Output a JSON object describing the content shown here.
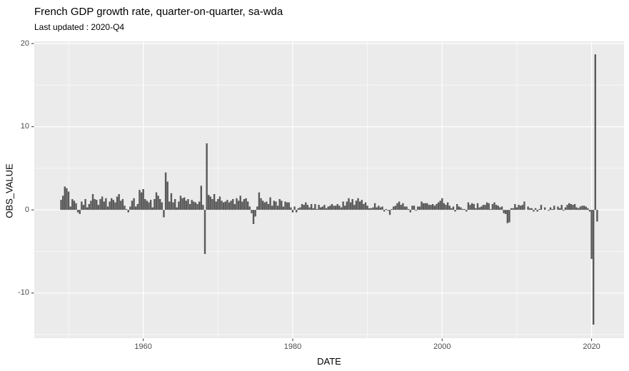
{
  "title": "French GDP growth rate, quarter-on-quarter, sa-wda",
  "subtitle": "Last updated : 2020-Q4",
  "chart_data": {
    "type": "bar",
    "title": "French GDP growth rate, quarter-on-quarter, sa-wda",
    "subtitle": "Last updated : 2020-Q4",
    "xlabel": "DATE",
    "ylabel": "OBS_VALUE",
    "legend": "none",
    "grid": "major-and-minor-white-on-gray",
    "x_ticks": [
      1960,
      1980,
      2000,
      2020
    ],
    "x_minor_ticks": [
      1950,
      1970,
      1990,
      2010
    ],
    "y_ticks": [
      20,
      10,
      0,
      -10
    ],
    "y_minor_ticks": [
      15,
      5,
      -5,
      -15
    ],
    "xlim": [
      1945.41,
      2024.34
    ],
    "ylim": [
      -15.43,
      20.26
    ],
    "frequency": "quarterly",
    "start_year": 1949,
    "start_quarter": 1,
    "colors": {
      "bar": "#595959",
      "panel_bg": "#EBEBEB",
      "gridline": "#FFFFFF",
      "tick_label": "#4D4D4D",
      "axis_tick": "#333333",
      "title_text": "#000000"
    },
    "values": [
      1.2,
      1.7,
      2.8,
      2.6,
      2.2,
      0.4,
      1.3,
      1.1,
      0.8,
      -0.3,
      -0.5,
      1.0,
      0.6,
      1.3,
      0.3,
      0.7,
      1.1,
      1.9,
      1.3,
      1.2,
      0.6,
      1.3,
      1.6,
      1.0,
      1.4,
      0.4,
      1.0,
      1.4,
      1.2,
      0.9,
      1.6,
      1.9,
      1.1,
      1.3,
      0.5,
      0.1,
      -0.3,
      0.4,
      1.1,
      1.4,
      0.4,
      0.7,
      2.4,
      2.1,
      2.5,
      1.3,
      1.1,
      0.9,
      1.2,
      0.3,
      1.3,
      2.1,
      1.7,
      1.3,
      0.9,
      -0.9,
      4.5,
      3.4,
      1.0,
      2.0,
      0.9,
      1.3,
      0.3,
      1.0,
      1.7,
      1.4,
      1.5,
      1.1,
      1.3,
      0.7,
      1.2,
      1.0,
      0.9,
      0.7,
      1.0,
      2.9,
      0.6,
      -5.3,
      8.0,
      1.8,
      1.6,
      1.3,
      1.9,
      1.0,
      1.3,
      1.6,
      1.1,
      0.9,
      1.0,
      1.2,
      0.9,
      1.1,
      1.3,
      0.7,
      1.4,
      1.1,
      1.7,
      1.0,
      1.3,
      1.4,
      1.0,
      0.4,
      -0.4,
      -1.7,
      -0.8,
      0.4,
      2.1,
      1.4,
      1.1,
      0.9,
      1.0,
      0.7,
      1.5,
      0.5,
      1.1,
      1.0,
      0.5,
      1.3,
      1.1,
      0.4,
      1.0,
      0.9,
      0.9,
      0.3,
      -0.3,
      0.4,
      -0.3,
      0.2,
      0.3,
      0.7,
      0.6,
      0.9,
      0.6,
      0.3,
      0.7,
      0.2,
      0.7,
      0.1,
      0.6,
      0.3,
      0.4,
      0.6,
      0.2,
      0.4,
      0.5,
      0.7,
      0.5,
      0.5,
      0.7,
      0.5,
      0.3,
      1.0,
      0.5,
      1.0,
      1.4,
      0.9,
      1.3,
      0.6,
      1.1,
      1.4,
      1.0,
      1.2,
      0.7,
      0.9,
      0.5,
      0.2,
      0.2,
      0.3,
      0.8,
      0.3,
      0.5,
      0.3,
      0.4,
      -0.2,
      0.1,
      -0.1,
      -0.6,
      0.1,
      0.4,
      0.5,
      0.8,
      1.0,
      0.6,
      0.8,
      0.4,
      0.4,
      0.1,
      -0.3,
      0.5,
      0.5,
      -0.1,
      0.4,
      0.4,
      1.0,
      0.8,
      0.8,
      0.8,
      0.6,
      0.6,
      0.7,
      0.5,
      0.7,
      0.9,
      1.1,
      1.4,
      0.8,
      0.6,
      0.9,
      0.5,
      0.2,
      0.4,
      -0.2,
      0.7,
      0.4,
      0.3,
      0.1,
      0.1,
      -0.2,
      0.9,
      0.6,
      0.8,
      0.7,
      0.2,
      0.8,
      0.3,
      0.4,
      0.6,
      0.6,
      0.9,
      0.8,
      0.1,
      0.7,
      0.9,
      0.6,
      0.5,
      0.3,
      0.4,
      -0.4,
      -0.5,
      -1.6,
      -1.5,
      0.2,
      0.2,
      0.7,
      0.3,
      0.6,
      0.5,
      0.6,
      1.0,
      0.0,
      0.4,
      0.2,
      0.2,
      -0.2,
      0.2,
      -0.2,
      0.1,
      0.6,
      0.0,
      0.3,
      0.0,
      -0.1,
      0.3,
      0.1,
      0.5,
      0.0,
      0.4,
      0.2,
      0.6,
      -0.1,
      0.3,
      0.6,
      0.8,
      0.7,
      0.6,
      0.7,
      0.3,
      0.2,
      0.4,
      0.5,
      0.5,
      0.4,
      0.2,
      -0.2,
      -5.9,
      -13.8,
      18.7,
      -1.4
    ]
  }
}
